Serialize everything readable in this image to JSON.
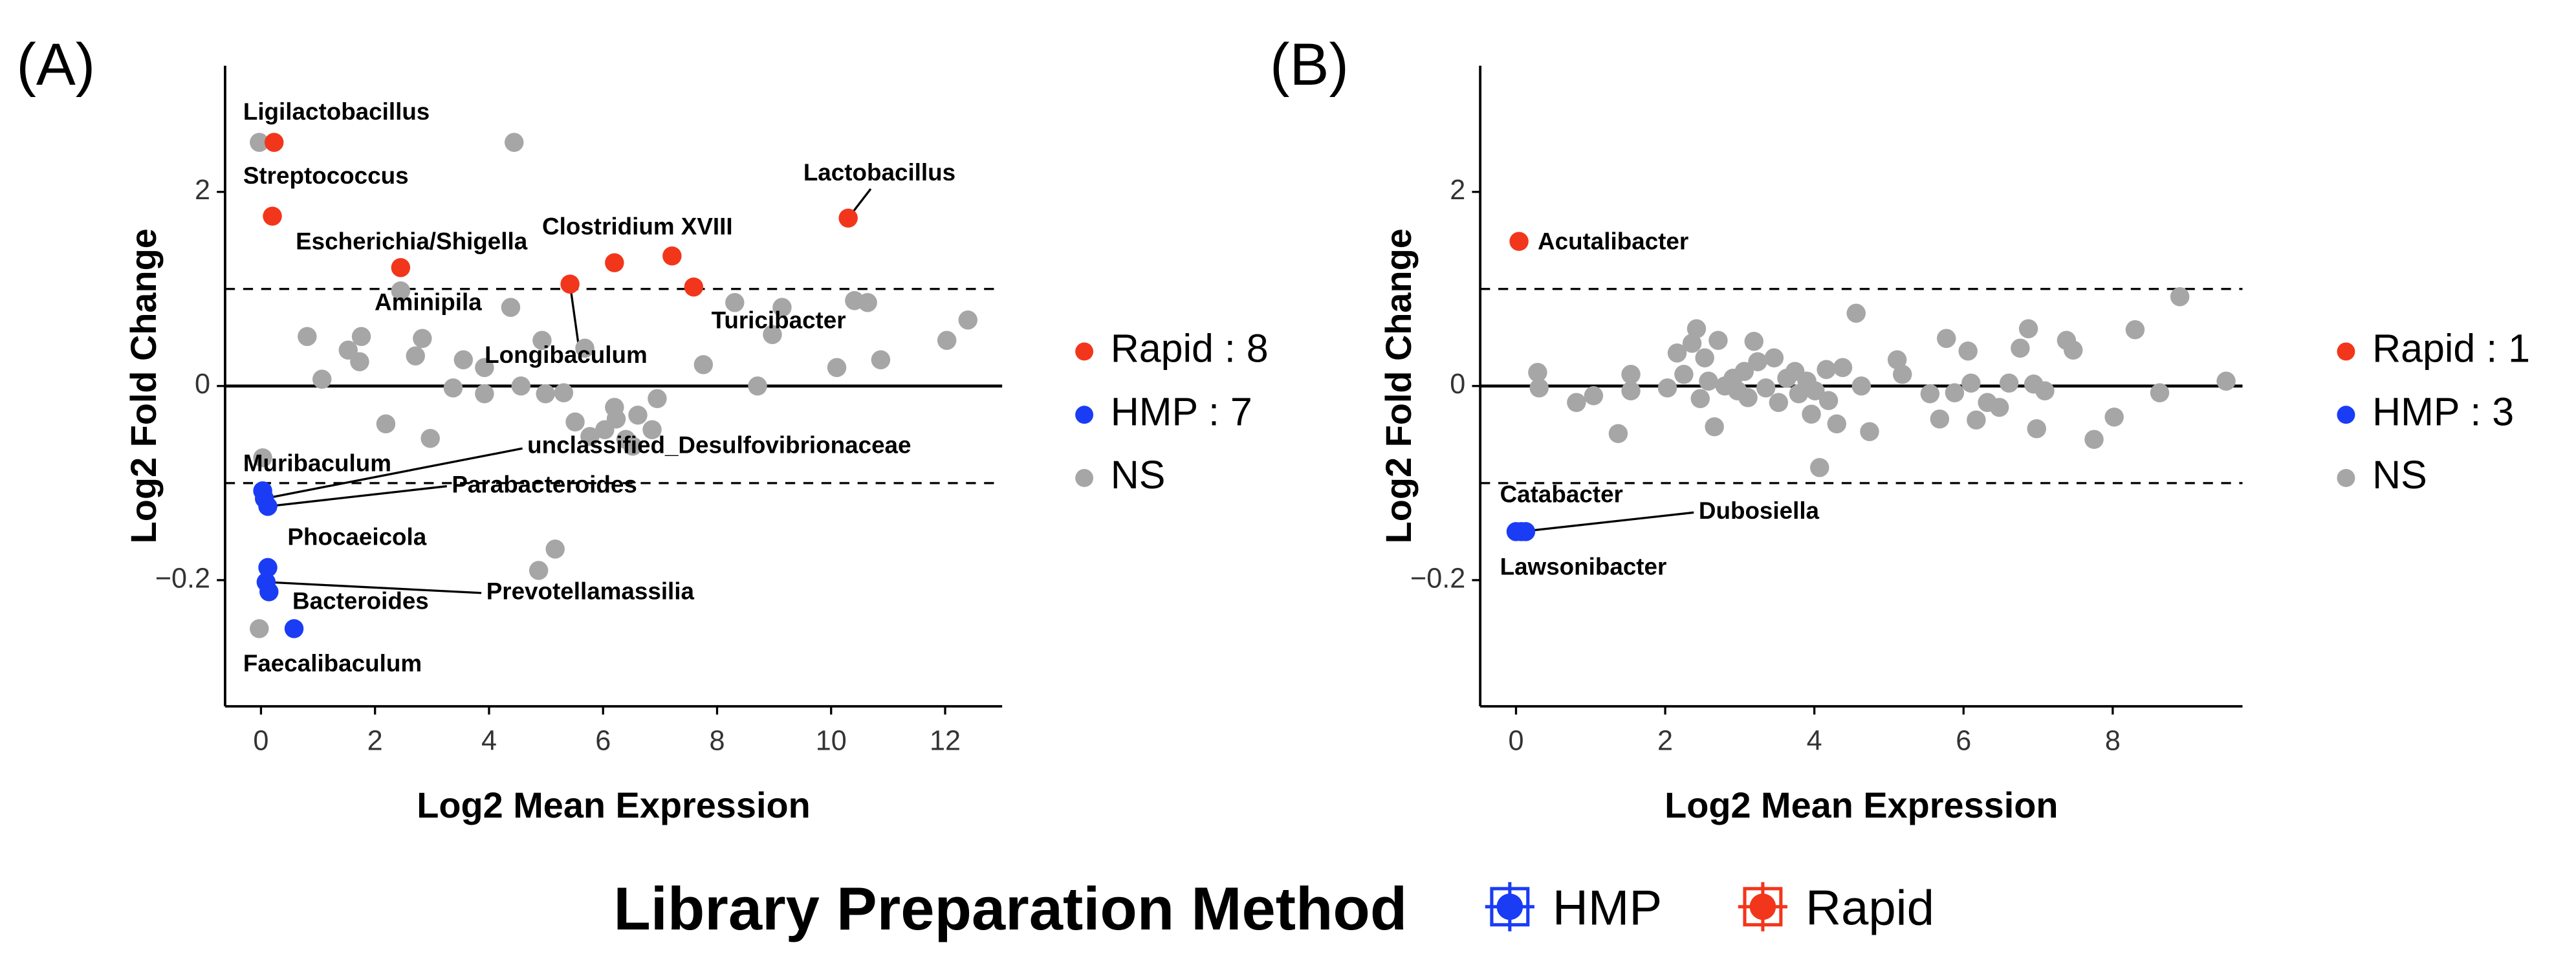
{
  "chart_data": [
    {
      "type": "scatter",
      "panel_label": "(A)",
      "xlabel": "Log2 Mean Expression",
      "ylabel": "Log2 Fold Change",
      "xlim": [
        -0.63,
        13.0
      ],
      "xticks": [
        0,
        2,
        4,
        6,
        8,
        10,
        12
      ],
      "ylim": [
        -0.33,
        3.3
      ],
      "yticks": [
        2,
        0,
        {
          "value": -0.2,
          "label": "−0.2"
        }
      ],
      "reference_lines": [
        {
          "value": 1,
          "style": "dashed"
        },
        {
          "value": 0,
          "style": "solid"
        },
        {
          "value": -0.1,
          "style": "dashed"
        }
      ],
      "series": [
        {
          "name": "Rapid : 8",
          "color": "#f2361b",
          "x": [
            0.23,
            0.2,
            2.45,
            5.42,
            6.2,
            7.21,
            7.59,
            10.3
          ],
          "values": [
            2.51,
            1.75,
            1.22,
            1.05,
            1.27,
            1.34,
            1.02,
            1.73
          ],
          "labels": [
            "Ligilactobacillus",
            "Streptococcus",
            "Escherichia/Shigella",
            "Longibaculum",
            "Aminipila",
            "Clostridium XVIII",
            "Turicibacter",
            "Lactobacillus"
          ]
        },
        {
          "name": "HMP : 7",
          "color": "#1a3cf5",
          "x": [
            0.03,
            0.06,
            0.12,
            0.12,
            0.09,
            0.14,
            0.58
          ],
          "values": [
            -0.108,
            -0.116,
            -0.124,
            -0.187,
            -0.202,
            -0.212,
            -0.25
          ],
          "labels": [
            "Muribaculum",
            "unclassified_Desulfovibrionaceae",
            "Parabacteroides",
            "Phocaeicola",
            "Prevotellamassilia",
            "Bacteroides",
            "Faecalibaculum"
          ]
        },
        {
          "name": "NS",
          "color": "#a6a6a6",
          "x": [
            -0.03,
            4.44,
            0.81,
            1.53,
            1.76,
            1.73,
            1.07,
            2.19,
            2.45,
            2.71,
            2.83,
            2.97,
            3.55,
            3.37,
            3.92,
            3.92,
            4.38,
            4.56,
            4.93,
            4.99,
            5.31,
            5.51,
            5.68,
            5.77,
            6.03,
            6.2,
            6.23,
            6.4,
            6.52,
            6.61,
            6.86,
            6.95,
            7.76,
            8.31,
            8.71,
            8.97,
            9.14,
            10.1,
            10.41,
            10.64,
            10.87,
            12.03,
            12.4,
            0.03,
            -0.03,
            4.87,
            5.16
          ],
          "values": [
            2.51,
            2.51,
            0.51,
            0.37,
            0.51,
            0.25,
            0.07,
            -0.039,
            0.98,
            0.31,
            0.49,
            -0.054,
            0.27,
            -0.002,
            0.19,
            -0.008,
            0.81,
            0,
            0.47,
            -0.008,
            -0.007,
            -0.037,
            0.39,
            -0.052,
            -0.045,
            -0.022,
            -0.034,
            -0.055,
            -0.062,
            -0.03,
            -0.045,
            -0.013,
            0.22,
            0.86,
            0,
            0.53,
            0.81,
            0.19,
            0.88,
            0.86,
            0.27,
            0.47,
            0.68,
            -0.074,
            -0.25,
            -0.19,
            -0.168
          ]
        }
      ]
    },
    {
      "type": "scatter",
      "panel_label": "(B)",
      "xlabel": "Log2 Mean Expression",
      "ylabel": "Log2 Fold Change",
      "xlim": [
        -0.48,
        9.74
      ],
      "xticks": [
        0,
        2,
        4,
        6,
        8
      ],
      "ylim": [
        -0.33,
        3.3
      ],
      "yticks": [
        2,
        0,
        {
          "value": -0.2,
          "label": "−0.2"
        }
      ],
      "reference_lines": [
        {
          "value": 1,
          "style": "dashed"
        },
        {
          "value": 0,
          "style": "solid"
        },
        {
          "value": -0.1,
          "style": "dashed"
        }
      ],
      "series": [
        {
          "name": "Rapid : 1",
          "color": "#f2361b",
          "x": [
            0.04
          ],
          "values": [
            1.49
          ],
          "labels": [
            "Acutalibacter"
          ]
        },
        {
          "name": "HMP : 3",
          "color": "#1a3cf5",
          "x": [
            0,
            0.07,
            0.13
          ],
          "values": [
            -0.15,
            -0.15,
            -0.15
          ],
          "labels": [
            "Catabacter",
            "Dubosiella",
            "Lawsonibacter"
          ]
        },
        {
          "name": "NS",
          "color": "#a6a6a6",
          "x": [
            0.29,
            0.31,
            0.81,
            1.04,
            1.37,
            1.54,
            1.54,
            2.03,
            2.16,
            2.25,
            2.36,
            2.42,
            2.47,
            2.53,
            2.58,
            2.66,
            2.71,
            2.8,
            2.91,
            2.97,
            3.06,
            3.11,
            3.19,
            3.24,
            3.35,
            3.46,
            3.52,
            3.63,
            3.74,
            3.79,
            3.9,
            3.96,
            4.01,
            4.07,
            4.16,
            4.19,
            4.3,
            4.38,
            4.56,
            4.63,
            4.74,
            5.11,
            5.18,
            5.55,
            5.68,
            5.77,
            5.88,
            6.06,
            6.1,
            6.17,
            6.32,
            6.48,
            6.61,
            6.76,
            6.87,
            6.94,
            6.98,
            7.09,
            7.38,
            7.47,
            7.75,
            8.02,
            8.3,
            8.63,
            8.9,
            9.52
          ],
          "values": [
            0.14,
            -0.002,
            -0.017,
            -0.01,
            -0.049,
            0.12,
            -0.005,
            -0.002,
            0.34,
            0.12,
            0.44,
            0.59,
            -0.013,
            0.29,
            0.05,
            -0.042,
            0.47,
            0,
            0.08,
            -0.005,
            0.15,
            -0.012,
            0.46,
            0.25,
            -0.002,
            0.29,
            -0.017,
            0.08,
            0.15,
            -0.008,
            0.05,
            -0.029,
            -0.005,
            -0.084,
            0.17,
            -0.015,
            -0.039,
            0.19,
            0.75,
            0,
            -0.047,
            0.27,
            0.12,
            -0.008,
            -0.034,
            0.49,
            -0.007,
            0.36,
            0.03,
            -0.035,
            -0.017,
            -0.022,
            0.03,
            0.39,
            0.59,
            0.02,
            -0.044,
            -0.005,
            0.47,
            0.37,
            -0.055,
            -0.032,
            0.58,
            -0.007,
            0.92,
            0.05
          ]
        }
      ]
    }
  ],
  "legend": {
    "title": "Library Preparation Method",
    "entries": [
      {
        "name": "HMP",
        "color": "#1a3cf5"
      },
      {
        "name": "Rapid",
        "color": "#f2361b"
      }
    ]
  }
}
